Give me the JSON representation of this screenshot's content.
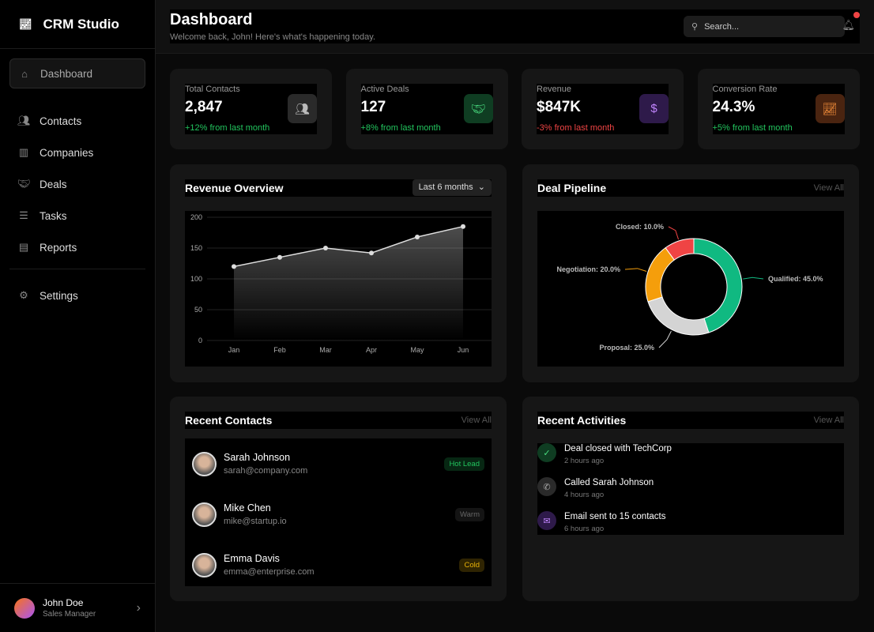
{
  "app": {
    "name": "CRM Studio",
    "logo_icon": "chart-line-icon"
  },
  "sidebar": {
    "items": [
      {
        "label": "Dashboard",
        "icon": "home-icon",
        "active": true
      },
      {
        "label": "Contacts",
        "icon": "users-icon"
      },
      {
        "label": "Companies",
        "icon": "building-icon"
      },
      {
        "label": "Deals",
        "icon": "handshake-icon"
      },
      {
        "label": "Tasks",
        "icon": "tasks-icon"
      },
      {
        "label": "Reports",
        "icon": "reports-icon"
      },
      {
        "label": "Settings",
        "icon": "gear-icon"
      }
    ],
    "user": {
      "name": "John Doe",
      "role": "Sales Manager"
    }
  },
  "header": {
    "title": "Dashboard",
    "subtitle": "Welcome back, John! Here's what's happening today.",
    "search_placeholder": "Search..."
  },
  "stats": [
    {
      "label": "Total Contacts",
      "value": "2,847",
      "change": "+12% from last month",
      "trend": "up",
      "icon": "users-icon",
      "color": "#22c55e"
    },
    {
      "label": "Active Deals",
      "value": "127",
      "change": "+8% from last month",
      "trend": "up",
      "icon": "handshake-icon",
      "color": "#22c55e"
    },
    {
      "label": "Revenue",
      "value": "$847K",
      "change": "-3% from last month",
      "trend": "down",
      "icon": "dollar-icon",
      "color": "#ef4444"
    },
    {
      "label": "Conversion Rate",
      "value": "24.3%",
      "change": "+5% from last month",
      "trend": "up",
      "icon": "chart-line-icon",
      "color": "#22c55e"
    }
  ],
  "revenue": {
    "title": "Revenue Overview",
    "range": "Last 6 months"
  },
  "pipeline": {
    "title": "Deal Pipeline",
    "view_all": "View All"
  },
  "chart_data": [
    {
      "type": "area",
      "categories": [
        "Jan",
        "Feb",
        "Mar",
        "Apr",
        "May",
        "Jun"
      ],
      "values": [
        120,
        135,
        150,
        142,
        168,
        185
      ],
      "ylim": [
        0,
        200
      ],
      "yticks": [
        0,
        50,
        100,
        150,
        200
      ],
      "grid": true
    },
    {
      "type": "pie",
      "donut": true,
      "labels": [
        "Qualified",
        "Proposal",
        "Negotiation",
        "Closed"
      ],
      "values": [
        45,
        25,
        20,
        10
      ],
      "display": [
        "Qualified: 45.0%",
        "Proposal: 25.0%",
        "Negotiation: 20.0%",
        "Closed: 10.0%"
      ],
      "colors": [
        "#10b981",
        "#d4d4d4",
        "#f59e0b",
        "#ef4444"
      ]
    }
  ],
  "contacts": {
    "title": "Recent Contacts",
    "view_all": "View All",
    "items": [
      {
        "name": "Sarah Johnson",
        "email": "sarah@company.com",
        "tag": "Hot Lead",
        "tag_color": "#22c55e"
      },
      {
        "name": "Mike Chen",
        "email": "mike@startup.io",
        "tag": "Warm",
        "tag_color": "#666666"
      },
      {
        "name": "Emma Davis",
        "email": "emma@enterprise.com",
        "tag": "Cold",
        "tag_color": "#eab308"
      }
    ]
  },
  "activities": {
    "title": "Recent Activities",
    "view_all": "View All",
    "items": [
      {
        "title": "Deal closed with TechCorp",
        "time": "2 hours ago",
        "icon": "check-icon"
      },
      {
        "title": "Called Sarah Johnson",
        "time": "4 hours ago",
        "icon": "phone-icon"
      },
      {
        "title": "Email sent to 15 contacts",
        "time": "6 hours ago",
        "icon": "mail-icon"
      }
    ]
  }
}
